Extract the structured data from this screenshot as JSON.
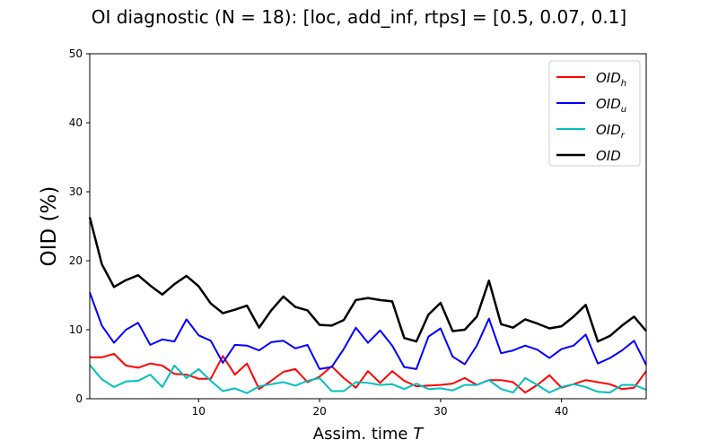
{
  "chart_data": {
    "type": "line",
    "title": "OI diagnostic  (N = 18): [loc, add_inf, rtps] = [0.5, 0.07, 0.1]",
    "xlabel_main": "Assim. time ",
    "xlabel_var": "T",
    "ylabel": "OID (%)",
    "xlim": [
      1,
      47
    ],
    "ylim": [
      0,
      50
    ],
    "xticks": [
      10,
      20,
      30,
      40
    ],
    "yticks": [
      0,
      10,
      20,
      30,
      40,
      50
    ],
    "grid": false,
    "legend_position": "top-right",
    "x": [
      1,
      2,
      3,
      4,
      5,
      6,
      7,
      8,
      9,
      10,
      11,
      12,
      13,
      14,
      15,
      16,
      17,
      18,
      19,
      20,
      21,
      22,
      23,
      24,
      25,
      26,
      27,
      28,
      29,
      30,
      31,
      32,
      33,
      34,
      35,
      36,
      37,
      38,
      39,
      40,
      41,
      42,
      43,
      44,
      45,
      46,
      47
    ],
    "series": [
      {
        "name": "OID_h",
        "base": "OID",
        "sub": "h",
        "color": "#ff0000",
        "width": 2,
        "values": [
          6.0,
          6.0,
          6.5,
          4.8,
          4.5,
          5.1,
          4.8,
          3.6,
          3.5,
          2.9,
          2.9,
          6.2,
          3.5,
          5.1,
          1.4,
          2.6,
          3.9,
          4.3,
          2.4,
          3.2,
          4.7,
          3.0,
          1.6,
          4.0,
          2.3,
          4.0,
          2.6,
          1.8,
          1.9,
          2.0,
          2.2,
          3.0,
          2.0,
          2.7,
          2.7,
          2.4,
          0.9,
          2.0,
          3.4,
          1.6,
          2.1,
          2.7,
          2.4,
          2.1,
          1.4,
          1.6,
          4.0
        ]
      },
      {
        "name": "OID_u",
        "base": "OID",
        "sub": "u",
        "color": "#0000ff",
        "width": 2,
        "values": [
          15.4,
          10.6,
          8.1,
          10.0,
          11.0,
          7.8,
          8.6,
          8.3,
          11.5,
          9.2,
          8.4,
          5.2,
          7.8,
          7.7,
          7.0,
          8.2,
          8.4,
          7.3,
          7.8,
          4.3,
          4.6,
          7.2,
          10.3,
          8.1,
          9.9,
          7.7,
          4.6,
          4.3,
          9.0,
          10.2,
          6.1,
          5.0,
          7.7,
          11.6,
          6.6,
          7.0,
          7.7,
          7.1,
          5.9,
          7.2,
          7.7,
          9.3,
          5.1,
          5.9,
          7.0,
          8.4,
          4.9
        ]
      },
      {
        "name": "OID_r",
        "base": "OID",
        "sub": "r",
        "color": "#00bfbf",
        "width": 2,
        "values": [
          4.9,
          2.8,
          1.7,
          2.5,
          2.6,
          3.5,
          1.7,
          4.8,
          3.0,
          4.3,
          2.6,
          1.1,
          1.5,
          0.8,
          1.8,
          2.1,
          2.4,
          1.9,
          2.6,
          3.0,
          1.1,
          1.1,
          2.4,
          2.3,
          2.0,
          2.1,
          1.4,
          2.2,
          1.4,
          1.5,
          1.2,
          2.0,
          2.0,
          2.7,
          1.4,
          0.9,
          3.0,
          2.0,
          0.9,
          1.7,
          2.1,
          1.7,
          1.0,
          0.9,
          2.0,
          2.0,
          1.3
        ]
      },
      {
        "name": "OID",
        "base": "OID",
        "sub": "",
        "color": "#000000",
        "width": 2.5,
        "values": [
          26.3,
          19.5,
          16.2,
          17.2,
          17.9,
          16.4,
          15.1,
          16.6,
          17.8,
          16.3,
          13.8,
          12.4,
          12.9,
          13.5,
          10.3,
          12.8,
          14.8,
          13.3,
          12.8,
          10.7,
          10.6,
          11.4,
          14.3,
          14.6,
          14.3,
          14.1,
          8.8,
          8.3,
          12.2,
          13.9,
          9.8,
          10.0,
          11.9,
          17.1,
          10.8,
          10.3,
          11.5,
          10.9,
          10.2,
          10.5,
          11.9,
          13.6,
          8.3,
          9.1,
          10.6,
          11.9,
          9.8
        ]
      }
    ]
  }
}
